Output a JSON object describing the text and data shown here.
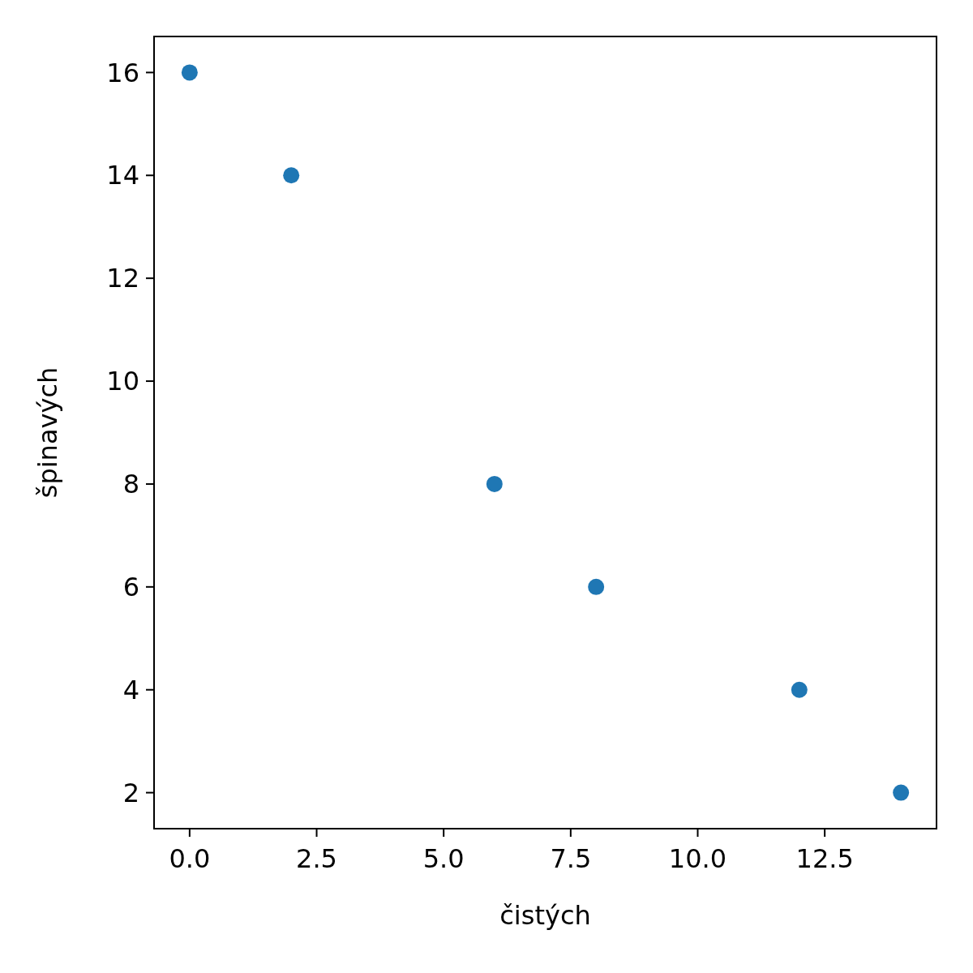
{
  "chart_data": {
    "type": "scatter",
    "xlabel": "čistých",
    "ylabel": "špinavých",
    "x": [
      0,
      2,
      6,
      8,
      12,
      14
    ],
    "series": [
      {
        "color": "#1f77b4",
        "values": [
          16,
          14,
          8,
          6,
          4,
          2
        ]
      }
    ],
    "xlim": [
      -0.7,
      14.7
    ],
    "xticks": [
      {
        "value": 0,
        "label": "0.0"
      },
      {
        "value": 2.5,
        "label": "2.5"
      },
      {
        "value": 5,
        "label": "5.0"
      },
      {
        "value": 7.5,
        "label": "7.5"
      },
      {
        "value": 10,
        "label": "10.0"
      },
      {
        "value": 12.5,
        "label": "12.5"
      }
    ],
    "ylim": [
      1.3,
      16.7
    ],
    "yticks": [
      2,
      4,
      6,
      8,
      10,
      12,
      14,
      16
    ],
    "grid": false,
    "marker": "circle"
  }
}
